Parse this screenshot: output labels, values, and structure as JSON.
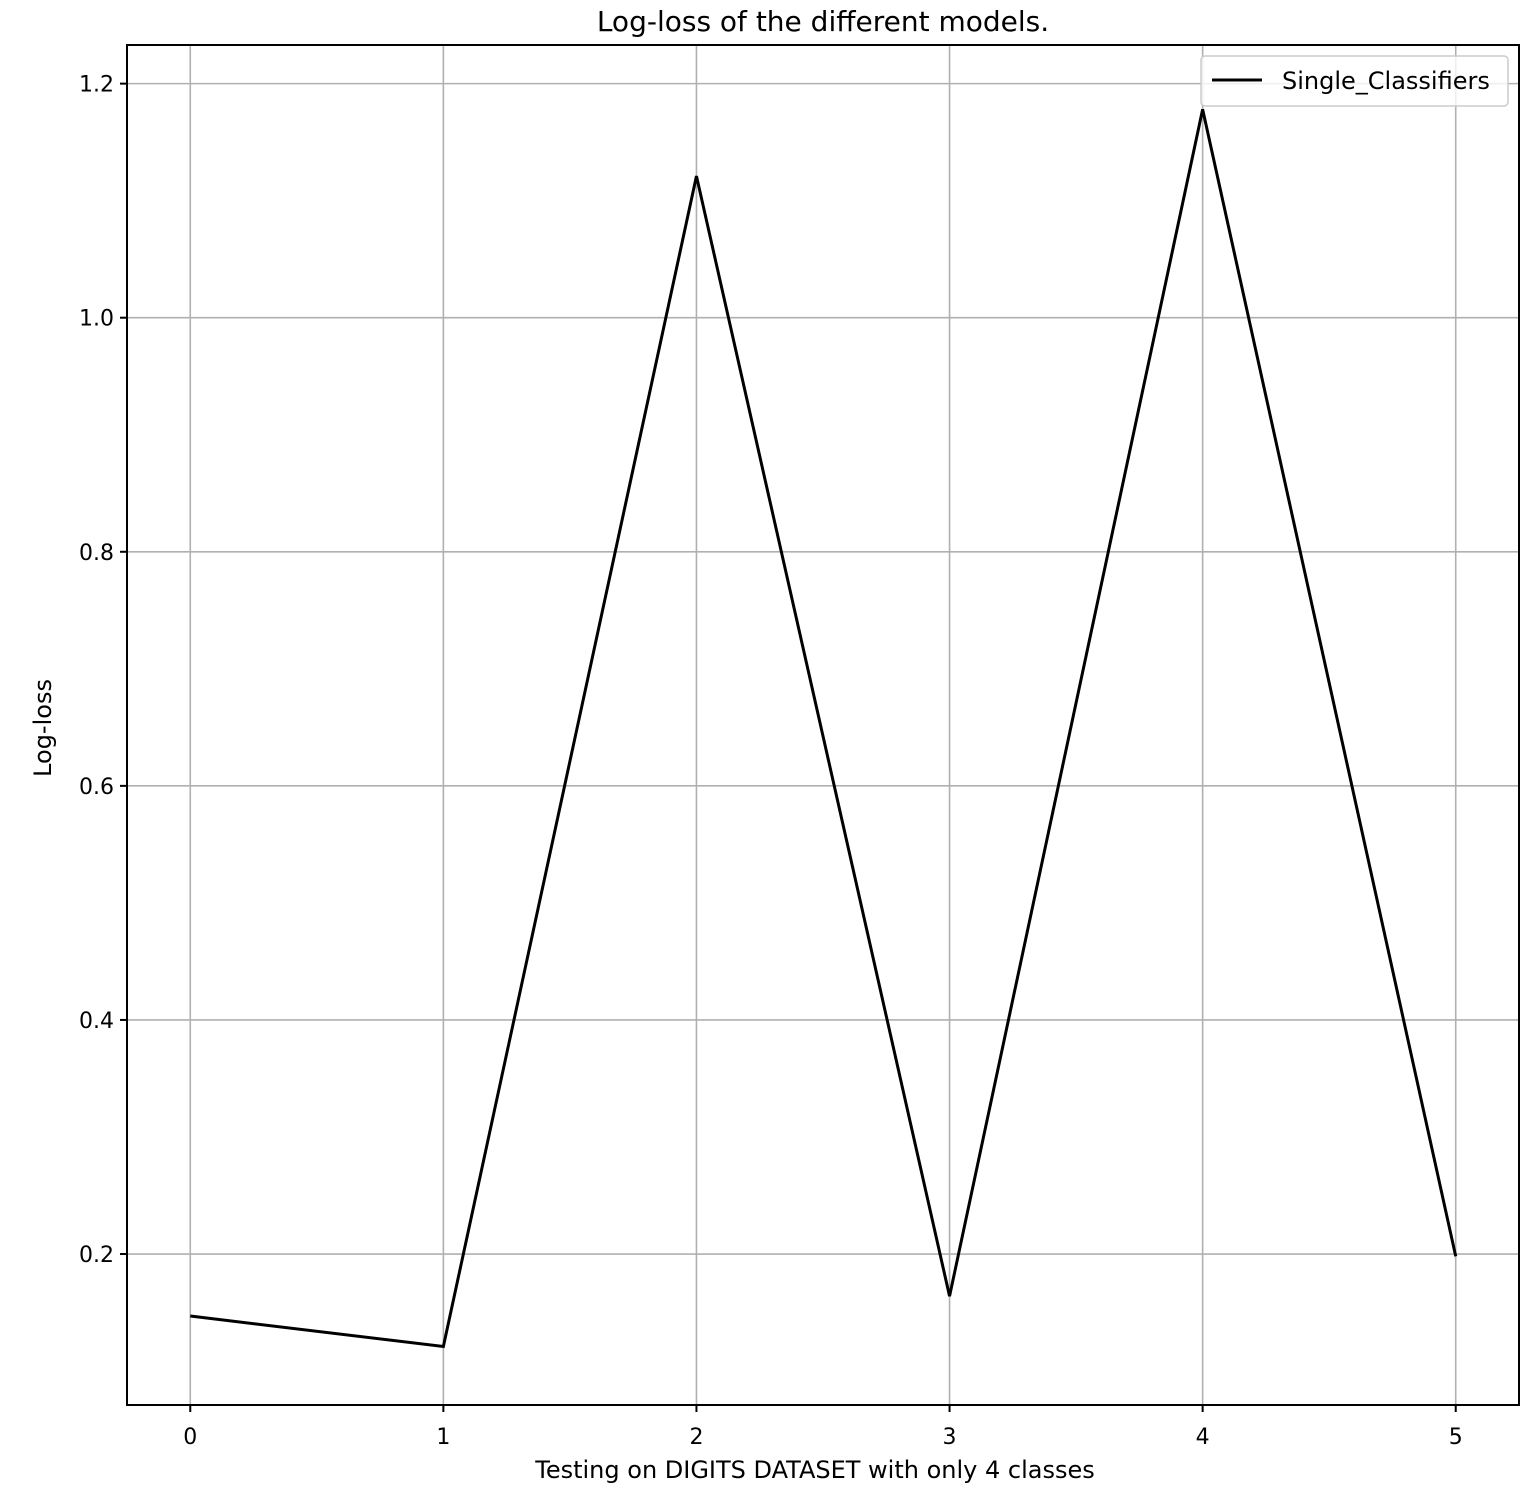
{
  "chart_data": {
    "type": "line",
    "title": "Log-loss of the different models.",
    "xlabel": "Testing on DIGITS DATASET with only 4 classes",
    "ylabel": "Log-loss",
    "x": [
      0,
      1,
      2,
      3,
      4,
      5
    ],
    "series": [
      {
        "name": "Single_Classifiers",
        "values": [
          0.147,
          0.121,
          1.121,
          0.164,
          1.178,
          0.198
        ],
        "color": "#000000"
      }
    ],
    "xticks": [
      0,
      1,
      2,
      3,
      4,
      5
    ],
    "xtick_labels": [
      "0",
      "1",
      "2",
      "3",
      "4",
      "5"
    ],
    "yticks": [
      0.2,
      0.4,
      0.6,
      0.8,
      1.0,
      1.2
    ],
    "ytick_labels": [
      "0.2",
      "0.4",
      "0.6",
      "0.8",
      "1.0",
      "1.2"
    ],
    "xlim": [
      -0.25,
      5.25
    ],
    "ylim": [
      0.071,
      1.233
    ],
    "grid": true,
    "legend_position": "top-right"
  }
}
